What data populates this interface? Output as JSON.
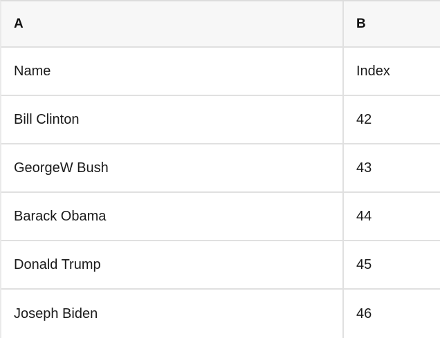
{
  "table": {
    "column_headers": [
      "A",
      "B"
    ],
    "rows": [
      [
        "Name",
        "Index"
      ],
      [
        "Bill Clinton",
        "42"
      ],
      [
        "GeorgeW Bush",
        "43"
      ],
      [
        "Barack Obama",
        "44"
      ],
      [
        "Donald Trump",
        "45"
      ],
      [
        "Joseph Biden",
        "46"
      ]
    ],
    "colors": {
      "header_bg": "#f7f7f7",
      "border": "#e0e0e0",
      "text": "#1a1a1a"
    }
  }
}
